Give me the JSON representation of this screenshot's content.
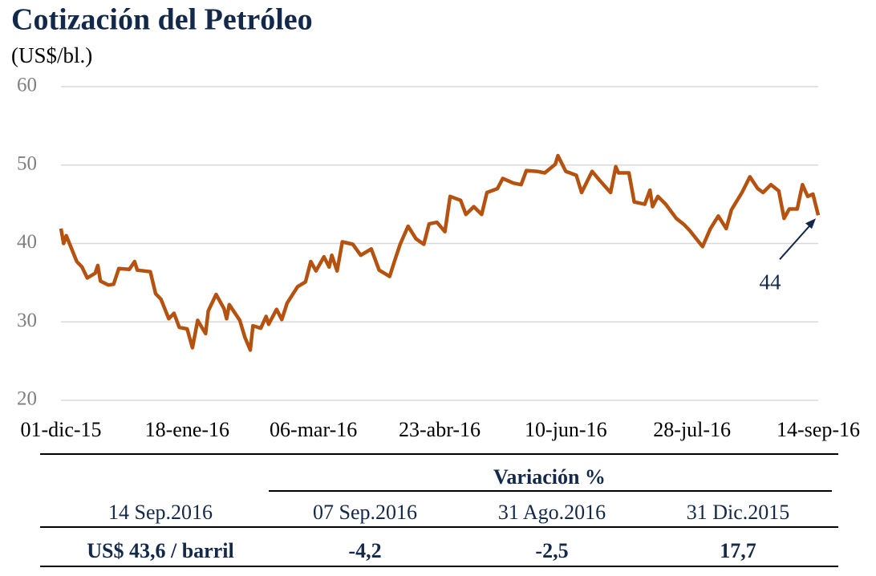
{
  "chart_data": {
    "type": "line",
    "title": "Cotización del Petróleo",
    "subtitle": "(US$/bl.)",
    "x": [
      "2015-12-01",
      "2015-12-02",
      "2015-12-03",
      "2015-12-07",
      "2015-12-09",
      "2015-12-11",
      "2015-12-14",
      "2015-12-15",
      "2015-12-16",
      "2015-12-19",
      "2015-12-21",
      "2015-12-23",
      "2015-12-27",
      "2015-12-29",
      "2015-12-30",
      "2016-01-04",
      "2016-01-06",
      "2016-01-08",
      "2016-01-11",
      "2016-01-13",
      "2016-01-15",
      "2016-01-18",
      "2016-01-20",
      "2016-01-22",
      "2016-01-25",
      "2016-01-26",
      "2016-01-29",
      "2016-02-01",
      "2016-02-02",
      "2016-02-03",
      "2016-02-07",
      "2016-02-09",
      "2016-02-11",
      "2016-02-12",
      "2016-02-15",
      "2016-02-17",
      "2016-02-18",
      "2016-02-21",
      "2016-02-23",
      "2016-02-25",
      "2016-02-29",
      "2016-03-03",
      "2016-03-05",
      "2016-03-07",
      "2016-03-10",
      "2016-03-12",
      "2016-03-13",
      "2016-03-15",
      "2016-03-17",
      "2016-03-21",
      "2016-03-24",
      "2016-03-28",
      "2016-03-31",
      "2016-04-04",
      "2016-04-06",
      "2016-04-08",
      "2016-04-11",
      "2016-04-14",
      "2016-04-17",
      "2016-04-19",
      "2016-04-22",
      "2016-04-25",
      "2016-04-27",
      "2016-05-01",
      "2016-05-03",
      "2016-05-06",
      "2016-05-09",
      "2016-05-11",
      "2016-05-15",
      "2016-05-17",
      "2016-05-21",
      "2016-05-24",
      "2016-05-26",
      "2016-05-30",
      "2016-06-02",
      "2016-06-06",
      "2016-06-07",
      "2016-06-10",
      "2016-06-14",
      "2016-06-16",
      "2016-06-20",
      "2016-06-23",
      "2016-06-27",
      "2016-06-29",
      "2016-06-30",
      "2016-07-04",
      "2016-07-06",
      "2016-07-10",
      "2016-07-12",
      "2016-07-13",
      "2016-07-15",
      "2016-07-18",
      "2016-07-22",
      "2016-07-25",
      "2016-07-27",
      "2016-08-01",
      "2016-08-04",
      "2016-08-07",
      "2016-08-10",
      "2016-08-12",
      "2016-08-16",
      "2016-08-19",
      "2016-08-22",
      "2016-08-24",
      "2016-08-27",
      "2016-08-30",
      "2016-09-01",
      "2016-09-03",
      "2016-09-06",
      "2016-09-08",
      "2016-09-10",
      "2016-09-12",
      "2016-09-14"
    ],
    "series": [
      {
        "name": "Petróleo",
        "color": "#b5520f",
        "values": [
          41.9,
          40.0,
          41.0,
          37.7,
          37.0,
          35.6,
          36.2,
          37.2,
          35.2,
          34.7,
          34.8,
          36.8,
          36.7,
          37.7,
          36.6,
          36.4,
          33.6,
          32.9,
          30.4,
          31.1,
          29.3,
          29.1,
          26.7,
          30.2,
          28.5,
          31.4,
          33.5,
          31.7,
          30.4,
          32.2,
          30.2,
          28.0,
          26.4,
          29.5,
          29.2,
          30.7,
          29.7,
          31.6,
          30.3,
          32.4,
          34.5,
          35.1,
          37.7,
          36.5,
          38.3,
          37.0,
          38.5,
          36.5,
          40.2,
          39.9,
          38.5,
          39.3,
          36.6,
          35.8,
          37.9,
          39.9,
          42.2,
          40.6,
          39.9,
          42.5,
          42.7,
          41.5,
          46.0,
          45.5,
          43.7,
          44.7,
          43.7,
          46.5,
          47.0,
          48.3,
          47.7,
          47.5,
          49.3,
          49.2,
          49.0,
          50.1,
          51.2,
          49.2,
          48.7,
          46.5,
          49.2,
          48.0,
          46.5,
          49.8,
          49.0,
          49.0,
          45.3,
          45.0,
          46.8,
          44.7,
          46.0,
          45.0,
          43.2,
          42.4,
          41.7,
          39.6,
          41.9,
          43.5,
          41.9,
          44.3,
          46.5,
          48.5,
          47.0,
          46.5,
          47.5,
          46.7,
          43.2,
          44.4,
          44.4,
          47.5,
          46.0,
          46.3,
          43.6
        ]
      }
    ],
    "xlim": [
      "2015-12-01",
      "2016-09-14"
    ],
    "xticks": [
      {
        "value": "2015-12-01",
        "label": "01-dic-15"
      },
      {
        "value": "2016-01-18",
        "label": "18-ene-16"
      },
      {
        "value": "2016-03-06",
        "label": "06-mar-16"
      },
      {
        "value": "2016-04-23",
        "label": "23-abr-16"
      },
      {
        "value": "2016-06-10",
        "label": "10-jun-16"
      },
      {
        "value": "2016-07-28",
        "label": "28-jul-16"
      },
      {
        "value": "2016-09-14",
        "label": "14-sep-16"
      }
    ],
    "ylim": [
      20,
      60
    ],
    "yticks": [
      20,
      30,
      40,
      50,
      60
    ],
    "grid": true,
    "annotations": [
      {
        "text": "44"
      }
    ]
  },
  "table": {
    "group_header": "Variación %",
    "headers": [
      "14 Sep.2016",
      "07 Sep.2016",
      "31 Ago.2016",
      "31 Dic.2015"
    ],
    "row": [
      "US$ 43,6 / barril",
      "-4,2",
      "-2,5",
      "17,7"
    ]
  }
}
